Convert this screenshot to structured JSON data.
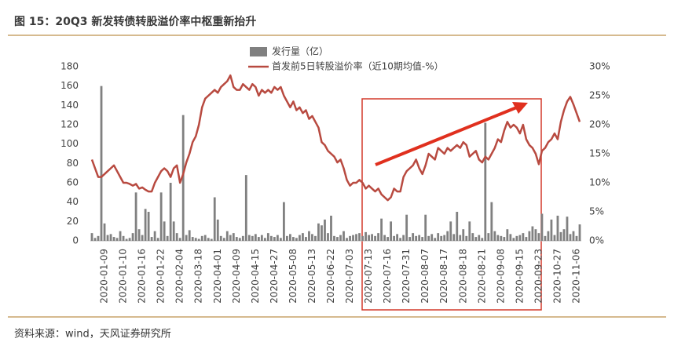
{
  "chart_data": {
    "type": "bar_line",
    "title": "图 15：20Q3 新发转债转股溢价率中枢重新抬升",
    "source": "资料来源：wind，天风证券研究所",
    "categories": [
      null,
      null,
      null,
      null,
      "2020-01-09",
      null,
      null,
      null,
      null,
      null,
      "2020-01-10",
      null,
      null,
      null,
      null,
      null,
      "2020-01-16",
      null,
      null,
      null,
      null,
      null,
      "2020-01-22",
      null,
      null,
      null,
      null,
      null,
      "2020-02-04",
      null,
      null,
      null,
      null,
      null,
      "2020-03-18",
      null,
      null,
      null,
      null,
      null,
      "2020-04-01",
      null,
      null,
      null,
      null,
      null,
      "2020-04-09",
      null,
      null,
      null,
      null,
      null,
      "2020-04-15",
      null,
      null,
      null,
      null,
      null,
      "2020-04-27",
      null,
      null,
      null,
      null,
      null,
      "2020-05-08",
      null,
      null,
      null,
      null,
      null,
      "2020-05-13",
      null,
      null,
      null,
      null,
      null,
      "2020-06-22",
      null,
      null,
      null,
      null,
      null,
      "2020-07-03",
      null,
      null,
      null,
      null,
      null,
      "2020-07-13",
      null,
      null,
      null,
      null,
      null,
      "2020-07-16",
      null,
      null,
      null,
      null,
      null,
      "2020-07-31",
      null,
      null,
      null,
      null,
      null,
      "2020-08-07",
      null,
      null,
      null,
      null,
      null,
      "2020-08-17",
      null,
      null,
      null,
      null,
      null,
      "2020-08-18",
      null,
      null,
      null,
      null,
      null,
      "2020-08-21",
      null,
      null,
      null,
      null,
      null,
      "2020-09-08",
      null,
      null,
      null,
      null,
      null,
      "2020-09-15",
      null,
      null,
      null,
      null,
      null,
      "2020-09-23",
      null,
      null,
      null,
      null,
      null,
      "2020-10-27",
      null,
      null,
      null,
      null,
      null,
      "2020-11-06",
      null
    ],
    "series": [
      {
        "name": "发行量（亿）",
        "color": "#808080",
        "kind": "bar",
        "axis": "y",
        "values": [
          8,
          3,
          5,
          160,
          18,
          6,
          7,
          4,
          3,
          10,
          5,
          2,
          3,
          8,
          50,
          12,
          6,
          33,
          30,
          4,
          10,
          3,
          50,
          20,
          5,
          60,
          20,
          8,
          3,
          130,
          6,
          11,
          4,
          3,
          2,
          5,
          6,
          3,
          2,
          45,
          22,
          5,
          3,
          10,
          6,
          8,
          4,
          3,
          5,
          68,
          6,
          5,
          7,
          4,
          6,
          3,
          8,
          5,
          4,
          6,
          3,
          40,
          5,
          7,
          4,
          3,
          6,
          8,
          4,
          10,
          7,
          5,
          18,
          16,
          22,
          8,
          26,
          5,
          4,
          6,
          10,
          3,
          5,
          6,
          7,
          8,
          5,
          9,
          6,
          7,
          5,
          8,
          23,
          6,
          4,
          20,
          5,
          7,
          3,
          6,
          27,
          4,
          8,
          5,
          6,
          4,
          27,
          5,
          7,
          3,
          8,
          5,
          6,
          10,
          20,
          7,
          30,
          6,
          12,
          5,
          20,
          8,
          4,
          6,
          3,
          122,
          8,
          40,
          10,
          6,
          5,
          4,
          12,
          7,
          3,
          5,
          6,
          8,
          4,
          10,
          15,
          12,
          8,
          28,
          5,
          10,
          22,
          6,
          26,
          9,
          12,
          25,
          7,
          10,
          5,
          17
        ]
      },
      {
        "name": "首发前5日转股溢价率（近10期均值-%）",
        "color": "#b84a40",
        "kind": "line",
        "axis": "y2",
        "values": [
          14,
          12.5,
          11,
          11,
          11.5,
          12,
          12.5,
          13,
          12,
          11,
          10,
          10,
          9.8,
          9.5,
          9.8,
          9,
          9.2,
          8.8,
          8.5,
          8.5,
          10,
          11,
          12,
          12.5,
          12,
          11,
          12.5,
          13,
          10,
          11.5,
          13.5,
          15,
          17,
          18,
          20,
          23,
          24.5,
          25,
          25.5,
          26,
          25.5,
          26.5,
          27,
          27.5,
          28.5,
          26.5,
          26,
          26,
          27,
          26.5,
          26,
          27,
          26.5,
          25,
          26,
          25.5,
          26,
          25.5,
          26.5,
          26,
          26.5,
          25,
          24,
          23,
          24,
          22.5,
          23,
          22,
          22.5,
          21,
          21.5,
          20.5,
          19.5,
          17,
          16.5,
          15.5,
          15,
          14.5,
          13.5,
          14,
          12.5,
          10.5,
          9.5,
          10,
          10,
          10.5,
          10,
          9,
          9.5,
          9,
          8.5,
          9,
          8,
          7.5,
          7,
          7.5,
          9,
          8.5,
          8.5,
          11,
          12,
          12.5,
          13,
          14,
          12.5,
          11.5,
          13,
          15,
          14.5,
          14,
          16,
          15.5,
          15,
          16,
          15.5,
          16,
          16.5,
          16,
          17,
          16.5,
          14.5,
          15,
          15.5,
          14,
          13.5,
          14.5,
          14,
          15,
          16,
          17.5,
          17,
          19,
          20.5,
          19.5,
          20,
          19.5,
          18.5,
          20,
          17.5,
          16.5,
          16,
          15,
          13.2,
          15.5,
          16,
          17,
          17.5,
          18.5,
          17.5,
          20.5,
          22.5,
          24,
          24.8,
          23.5,
          22,
          20.5
        ]
      }
    ],
    "ylim": [
      0,
      180
    ],
    "yticks": [
      0,
      20,
      40,
      60,
      80,
      100,
      120,
      140,
      160,
      180
    ],
    "y2lim": [
      0,
      30
    ],
    "y2ticks": [
      {
        "value": 0,
        "label": "0%"
      },
      {
        "value": 5,
        "label": "5%"
      },
      {
        "value": 10,
        "label": "10%"
      },
      {
        "value": 15,
        "label": "15%"
      },
      {
        "value": 20,
        "label": "20%"
      },
      {
        "value": 25,
        "label": "25%"
      },
      {
        "value": 30,
        "label": "30%"
      }
    ],
    "legend": "top"
  }
}
